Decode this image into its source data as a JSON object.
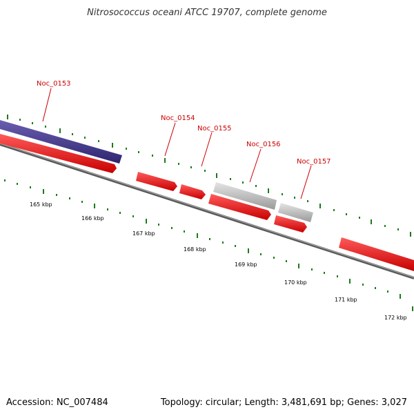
{
  "title": "Nitrosococcus oceani ATCC 19707, complete genome",
  "footer": {
    "accession": "Accession: NC_007484",
    "summary": "Topology: circular; Length: 3,481,691 bp; Genes: 3,027"
  },
  "scale_labels": [
    "165 kbp",
    "166 kbp",
    "167 kbp",
    "168 kbp",
    "169 kbp",
    "170 kbp",
    "171 kbp",
    "172 kbp"
  ],
  "gene_labels": [
    "Noc_0153",
    "Noc_0154",
    "Noc_0155",
    "Noc_0156",
    "Noc_0157"
  ],
  "colors": {
    "cds_forward": "#ff0000",
    "other_feature": "#4b3f8c",
    "pseudo_feature": "#c8c8c8",
    "backbone": "#6e6e6e",
    "ticks": "#1a7a1a",
    "gene_label": "#cc0000"
  }
}
